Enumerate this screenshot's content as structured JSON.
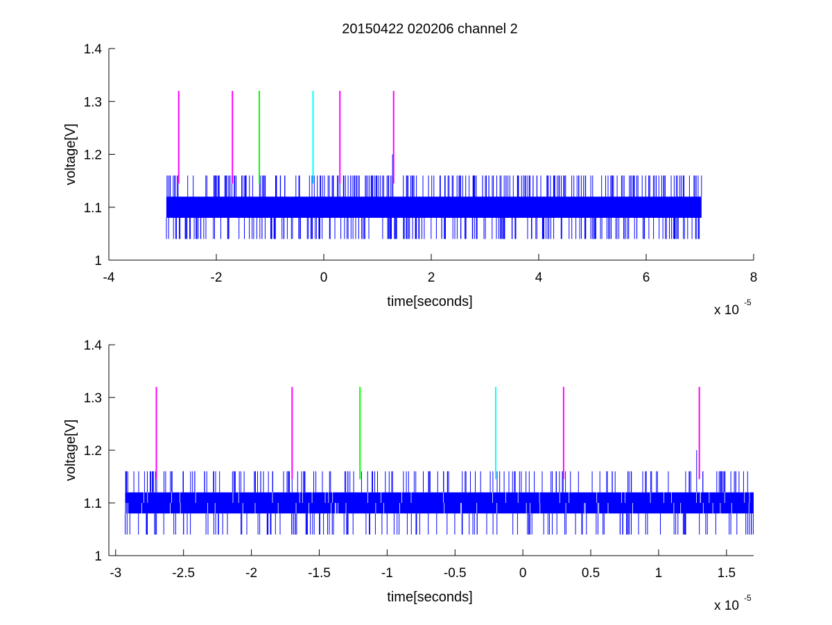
{
  "figure": {
    "title": "20150422 020206 channel 2"
  },
  "colors": {
    "signal": "#0000ff",
    "magenta": "#ff00ff",
    "green": "#00ff00",
    "cyan": "#00ffff",
    "axes": "#000000"
  },
  "chart_data": [
    {
      "type": "line",
      "title": "20150422 020206 channel 2",
      "xlabel": "time[seconds]",
      "ylabel": "voltage[V]",
      "x_multiplier_label": {
        "base": "x 10",
        "exponent": "-5"
      },
      "xlim": [
        -4,
        8
      ],
      "ylim": [
        1,
        1.4
      ],
      "xticks": [
        -4,
        -2,
        0,
        2,
        4,
        6,
        8
      ],
      "xtick_labels": [
        "-4",
        "-2",
        "0",
        "2",
        "4",
        "6",
        "8"
      ],
      "yticks": [
        1,
        1.1,
        1.2,
        1.3,
        1.4
      ],
      "ytick_labels": [
        "1",
        "1.1",
        "1.2",
        "1.3",
        "1.4"
      ],
      "grid": false,
      "series": [
        {
          "kind": "noisy-trace",
          "color": "blue",
          "x_range": [
            -2.93,
            7.03
          ],
          "band": [
            1.08,
            1.12
          ],
          "spike_high": 1.16,
          "spike_low": 1.04,
          "extra_spikes": [
            {
              "x": 1.28,
              "y": 1.2
            }
          ]
        }
      ],
      "markers": [
        {
          "x": -2.7,
          "y_low": 1.145,
          "y_high": 1.32,
          "color": "magenta"
        },
        {
          "x": -1.7,
          "y_low": 1.145,
          "y_high": 1.32,
          "color": "magenta"
        },
        {
          "x": -1.2,
          "y_low": 1.145,
          "y_high": 1.32,
          "color": "green"
        },
        {
          "x": -0.2,
          "y_low": 1.145,
          "y_high": 1.32,
          "color": "cyan"
        },
        {
          "x": 0.3,
          "y_low": 1.145,
          "y_high": 1.32,
          "color": "magenta"
        },
        {
          "x": 1.3,
          "y_low": 1.145,
          "y_high": 1.32,
          "color": "magenta"
        }
      ]
    },
    {
      "type": "line",
      "title": "",
      "xlabel": "time[seconds]",
      "ylabel": "voltage[V]",
      "x_multiplier_label": {
        "base": "x 10",
        "exponent": "-5"
      },
      "xlim": [
        -3.05,
        1.7
      ],
      "ylim": [
        1,
        1.4
      ],
      "xticks": [
        -3,
        -2.5,
        -2,
        -1.5,
        -1,
        -0.5,
        0,
        0.5,
        1,
        1.5
      ],
      "xtick_labels": [
        "-3",
        "-2.5",
        "-2",
        "-1.5",
        "-1",
        "-0.5",
        "0",
        "0.5",
        "1",
        "1.5"
      ],
      "yticks": [
        1,
        1.1,
        1.2,
        1.3,
        1.4
      ],
      "ytick_labels": [
        "1",
        "1.1",
        "1.2",
        "1.3",
        "1.4"
      ],
      "grid": false,
      "series": [
        {
          "kind": "noisy-trace",
          "color": "blue",
          "x_range": [
            -2.93,
            1.7
          ],
          "band": [
            1.08,
            1.12
          ],
          "spike_high": 1.16,
          "spike_low": 1.04,
          "extra_spikes": [
            {
              "x": 1.28,
              "y": 1.2
            }
          ]
        }
      ],
      "markers": [
        {
          "x": -2.7,
          "y_low": 1.145,
          "y_high": 1.32,
          "color": "magenta"
        },
        {
          "x": -1.7,
          "y_low": 1.145,
          "y_high": 1.32,
          "color": "magenta"
        },
        {
          "x": -1.2,
          "y_low": 1.145,
          "y_high": 1.32,
          "color": "green"
        },
        {
          "x": -0.2,
          "y_low": 1.145,
          "y_high": 1.32,
          "color": "cyan"
        },
        {
          "x": 0.3,
          "y_low": 1.145,
          "y_high": 1.32,
          "color": "magenta"
        },
        {
          "x": 1.3,
          "y_low": 1.145,
          "y_high": 1.32,
          "color": "magenta"
        }
      ]
    }
  ]
}
